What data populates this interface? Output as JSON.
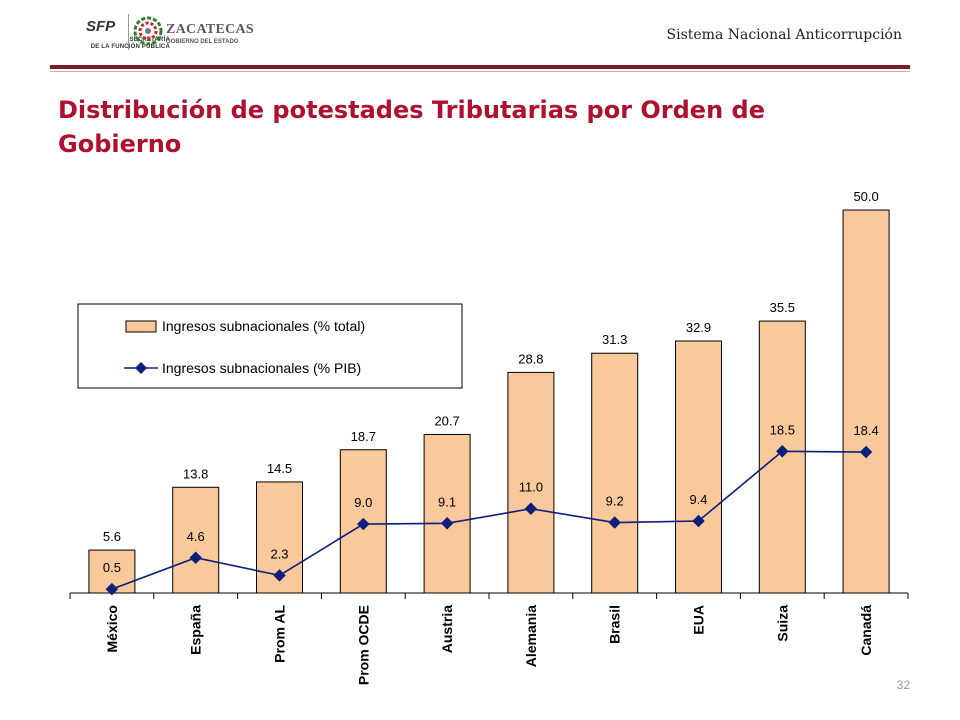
{
  "header": {
    "tagline": "Sistema Nacional Anticorrupción",
    "logos": {
      "sfp": {
        "name": "SFP",
        "line1": "SECRETARÍA",
        "line2": "DE LA FUNCIÓN PÚBLICA"
      },
      "zacatecas": {
        "name": "ZACATECAS",
        "line1": "GOBIERNO DEL ESTADO"
      }
    }
  },
  "slide": {
    "title": "Distribución de potestades Tributarias por Orden de Gobierno",
    "page_number": "32"
  },
  "colors": {
    "title": "#b01030",
    "header_rule": "#7a1c2a",
    "bar_fill": "#f9c89b",
    "bar_stroke": "#000000",
    "line": "#0d1f7a",
    "marker": "#0d1f7a"
  },
  "chart_data": {
    "type": "bar",
    "categories": [
      "México",
      "España",
      "Prom AL",
      "Prom OCDE",
      "Austria",
      "Alemania",
      "Brasil",
      "EUA",
      "Suiza",
      "Canadá"
    ],
    "series": [
      {
        "name": "Ingresos subnacionales (% total)",
        "kind": "bar",
        "values": [
          5.6,
          13.8,
          14.5,
          18.7,
          20.7,
          28.8,
          31.3,
          32.9,
          35.5,
          50.0
        ],
        "labels": [
          "5.6",
          "13.8",
          "14.5",
          "18.7",
          "20.7",
          "28.8",
          "31.3",
          "32.9",
          "35.5",
          "50.0"
        ]
      },
      {
        "name": "Ingresos subnacionales (% PIB)",
        "kind": "line",
        "values": [
          0.5,
          4.6,
          2.3,
          9.0,
          9.1,
          11.0,
          9.2,
          9.4,
          18.5,
          18.4
        ],
        "labels": [
          "0.5",
          "4.6",
          "2.3",
          "9.0",
          "9.1",
          "11.0",
          "9.2",
          "9.4",
          "18.5",
          "18.4"
        ]
      }
    ],
    "ylim": [
      0,
      50
    ],
    "grid": false,
    "legend": "top-left",
    "xlabel": "",
    "ylabel": ""
  }
}
